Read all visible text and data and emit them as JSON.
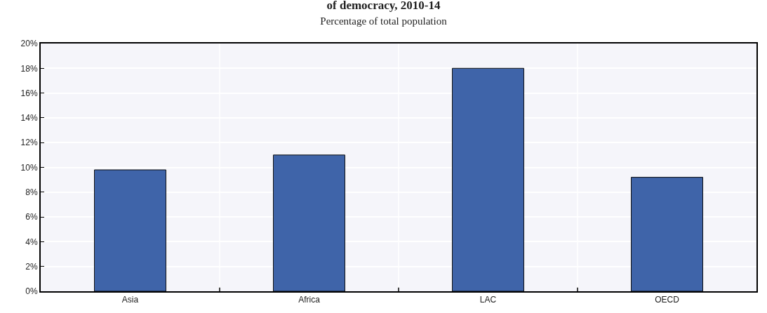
{
  "chart_data": {
    "type": "bar",
    "title": "of democracy, 2010-14",
    "subtitle": "Percentage of total population",
    "categories": [
      "Asia",
      "Africa",
      "LAC",
      "OECD"
    ],
    "values": [
      9.8,
      11.0,
      18.0,
      9.2
    ],
    "color": "#3f64a9",
    "ylim": [
      0,
      20
    ],
    "yticks": [
      {
        "value": 0,
        "label": "0%"
      },
      {
        "value": 2,
        "label": "2%"
      },
      {
        "value": 4,
        "label": "4%"
      },
      {
        "value": 6,
        "label": "6%"
      },
      {
        "value": 8,
        "label": "8%"
      },
      {
        "value": 10,
        "label": "10%"
      },
      {
        "value": 12,
        "label": "12%"
      },
      {
        "value": 14,
        "label": "14%"
      },
      {
        "value": 16,
        "label": "16%"
      },
      {
        "value": 18,
        "label": "18%"
      },
      {
        "value": 20,
        "label": "20%"
      }
    ],
    "grid": true,
    "legend": false
  }
}
